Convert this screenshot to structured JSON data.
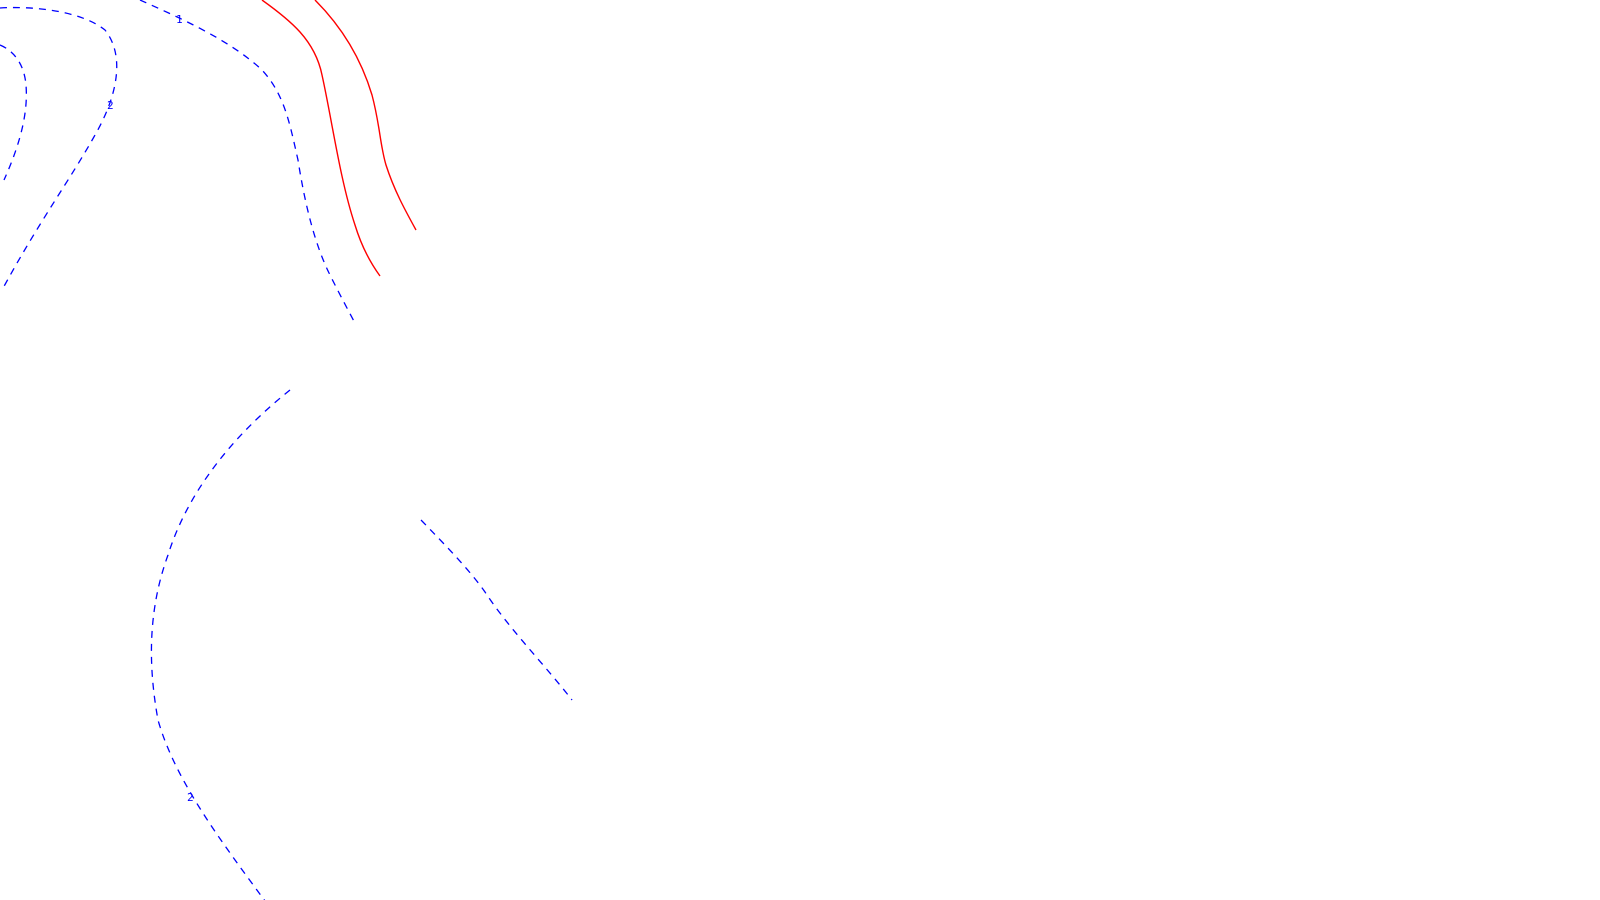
{
  "map": {
    "background": "#ffffff",
    "colors": {
      "negative_contour": "#0000ff",
      "positive_contour": "#ff0000"
    },
    "contour_labels": [
      "1",
      "2",
      "2"
    ]
  }
}
